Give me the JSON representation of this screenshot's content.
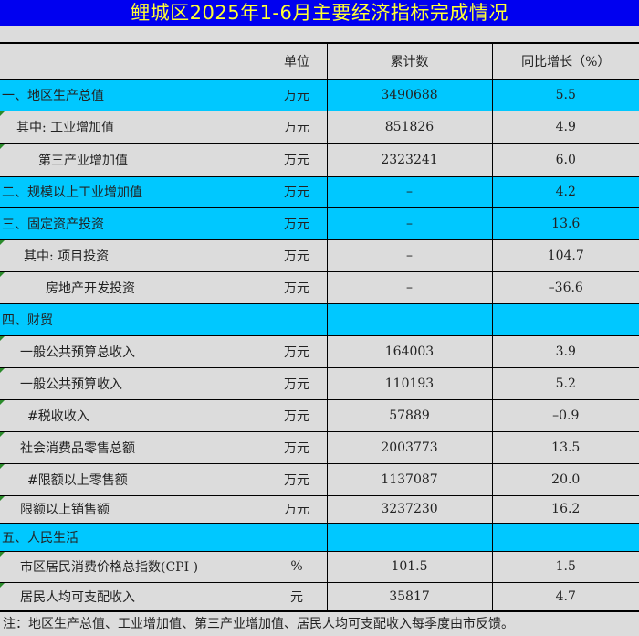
{
  "title": "鲤城区2025年1-6月主要经济指标完成情况",
  "columns": [
    "",
    "单位",
    "累计数",
    "同比增长（%）"
  ],
  "rows": [
    {
      "name": "一、地区生产总值",
      "unit": "万元",
      "total": "3490688",
      "growth": "5.5",
      "highlight": true
    },
    {
      "name": "其中: 工业增加值",
      "unit": "万元",
      "total": "851826",
      "growth": "4.9"
    },
    {
      "name": "第三产业增加值",
      "unit": "万元",
      "total": "2323241",
      "growth": "6.0"
    },
    {
      "name": "二、规模以上工业增加值",
      "unit": "万元",
      "total": "–",
      "growth": "4.2",
      "highlight": true
    },
    {
      "name": "三、固定资产投资",
      "unit": "万元",
      "total": "–",
      "growth": "13.6",
      "highlight": true
    },
    {
      "name": "其中: 项目投资",
      "unit": "万元",
      "total": "–",
      "growth": "104.7"
    },
    {
      "name": "房地产开发投资",
      "unit": "万元",
      "total": "–",
      "growth": "–36.6"
    },
    {
      "name": "四、财贸",
      "unit": "",
      "total": "",
      "growth": "",
      "highlight": true
    },
    {
      "name": "一般公共预算总收入",
      "unit": "万元",
      "total": "164003",
      "growth": "3.9"
    },
    {
      "name": "一般公共预算收入",
      "unit": "万元",
      "total": "110193",
      "growth": "5.2"
    },
    {
      "name": "#税收收入",
      "unit": "万元",
      "total": "57889",
      "growth": "–0.9"
    },
    {
      "name": "社会消费品零售总额",
      "unit": "万元",
      "total": "2003773",
      "growth": "13.5"
    },
    {
      "name": "#限额以上零售额",
      "unit": "万元",
      "total": "1137087",
      "growth": "20.0"
    },
    {
      "name": "限额以上销售额",
      "unit": "万元",
      "total": "3237230",
      "growth": "16.2"
    },
    {
      "name": "五、人民生活",
      "unit": "",
      "total": "",
      "growth": "",
      "highlight": true
    },
    {
      "name": "市区居民消费价格总指数(CPI )",
      "unit": "%",
      "total": "101.5",
      "growth": "1.5"
    },
    {
      "name": "居民人均可支配收入",
      "unit": "元",
      "total": "35817",
      "growth": "4.7"
    }
  ],
  "note": "注：地区生产总值、工业增加值、第三产业增加值、居民人均可支配收入每季度由市反馈。",
  "colors": {
    "title_bg": "#0000f0",
    "title_text": "#ffff33",
    "highlight": "#00c8ff",
    "background": "#dcdcdc"
  }
}
